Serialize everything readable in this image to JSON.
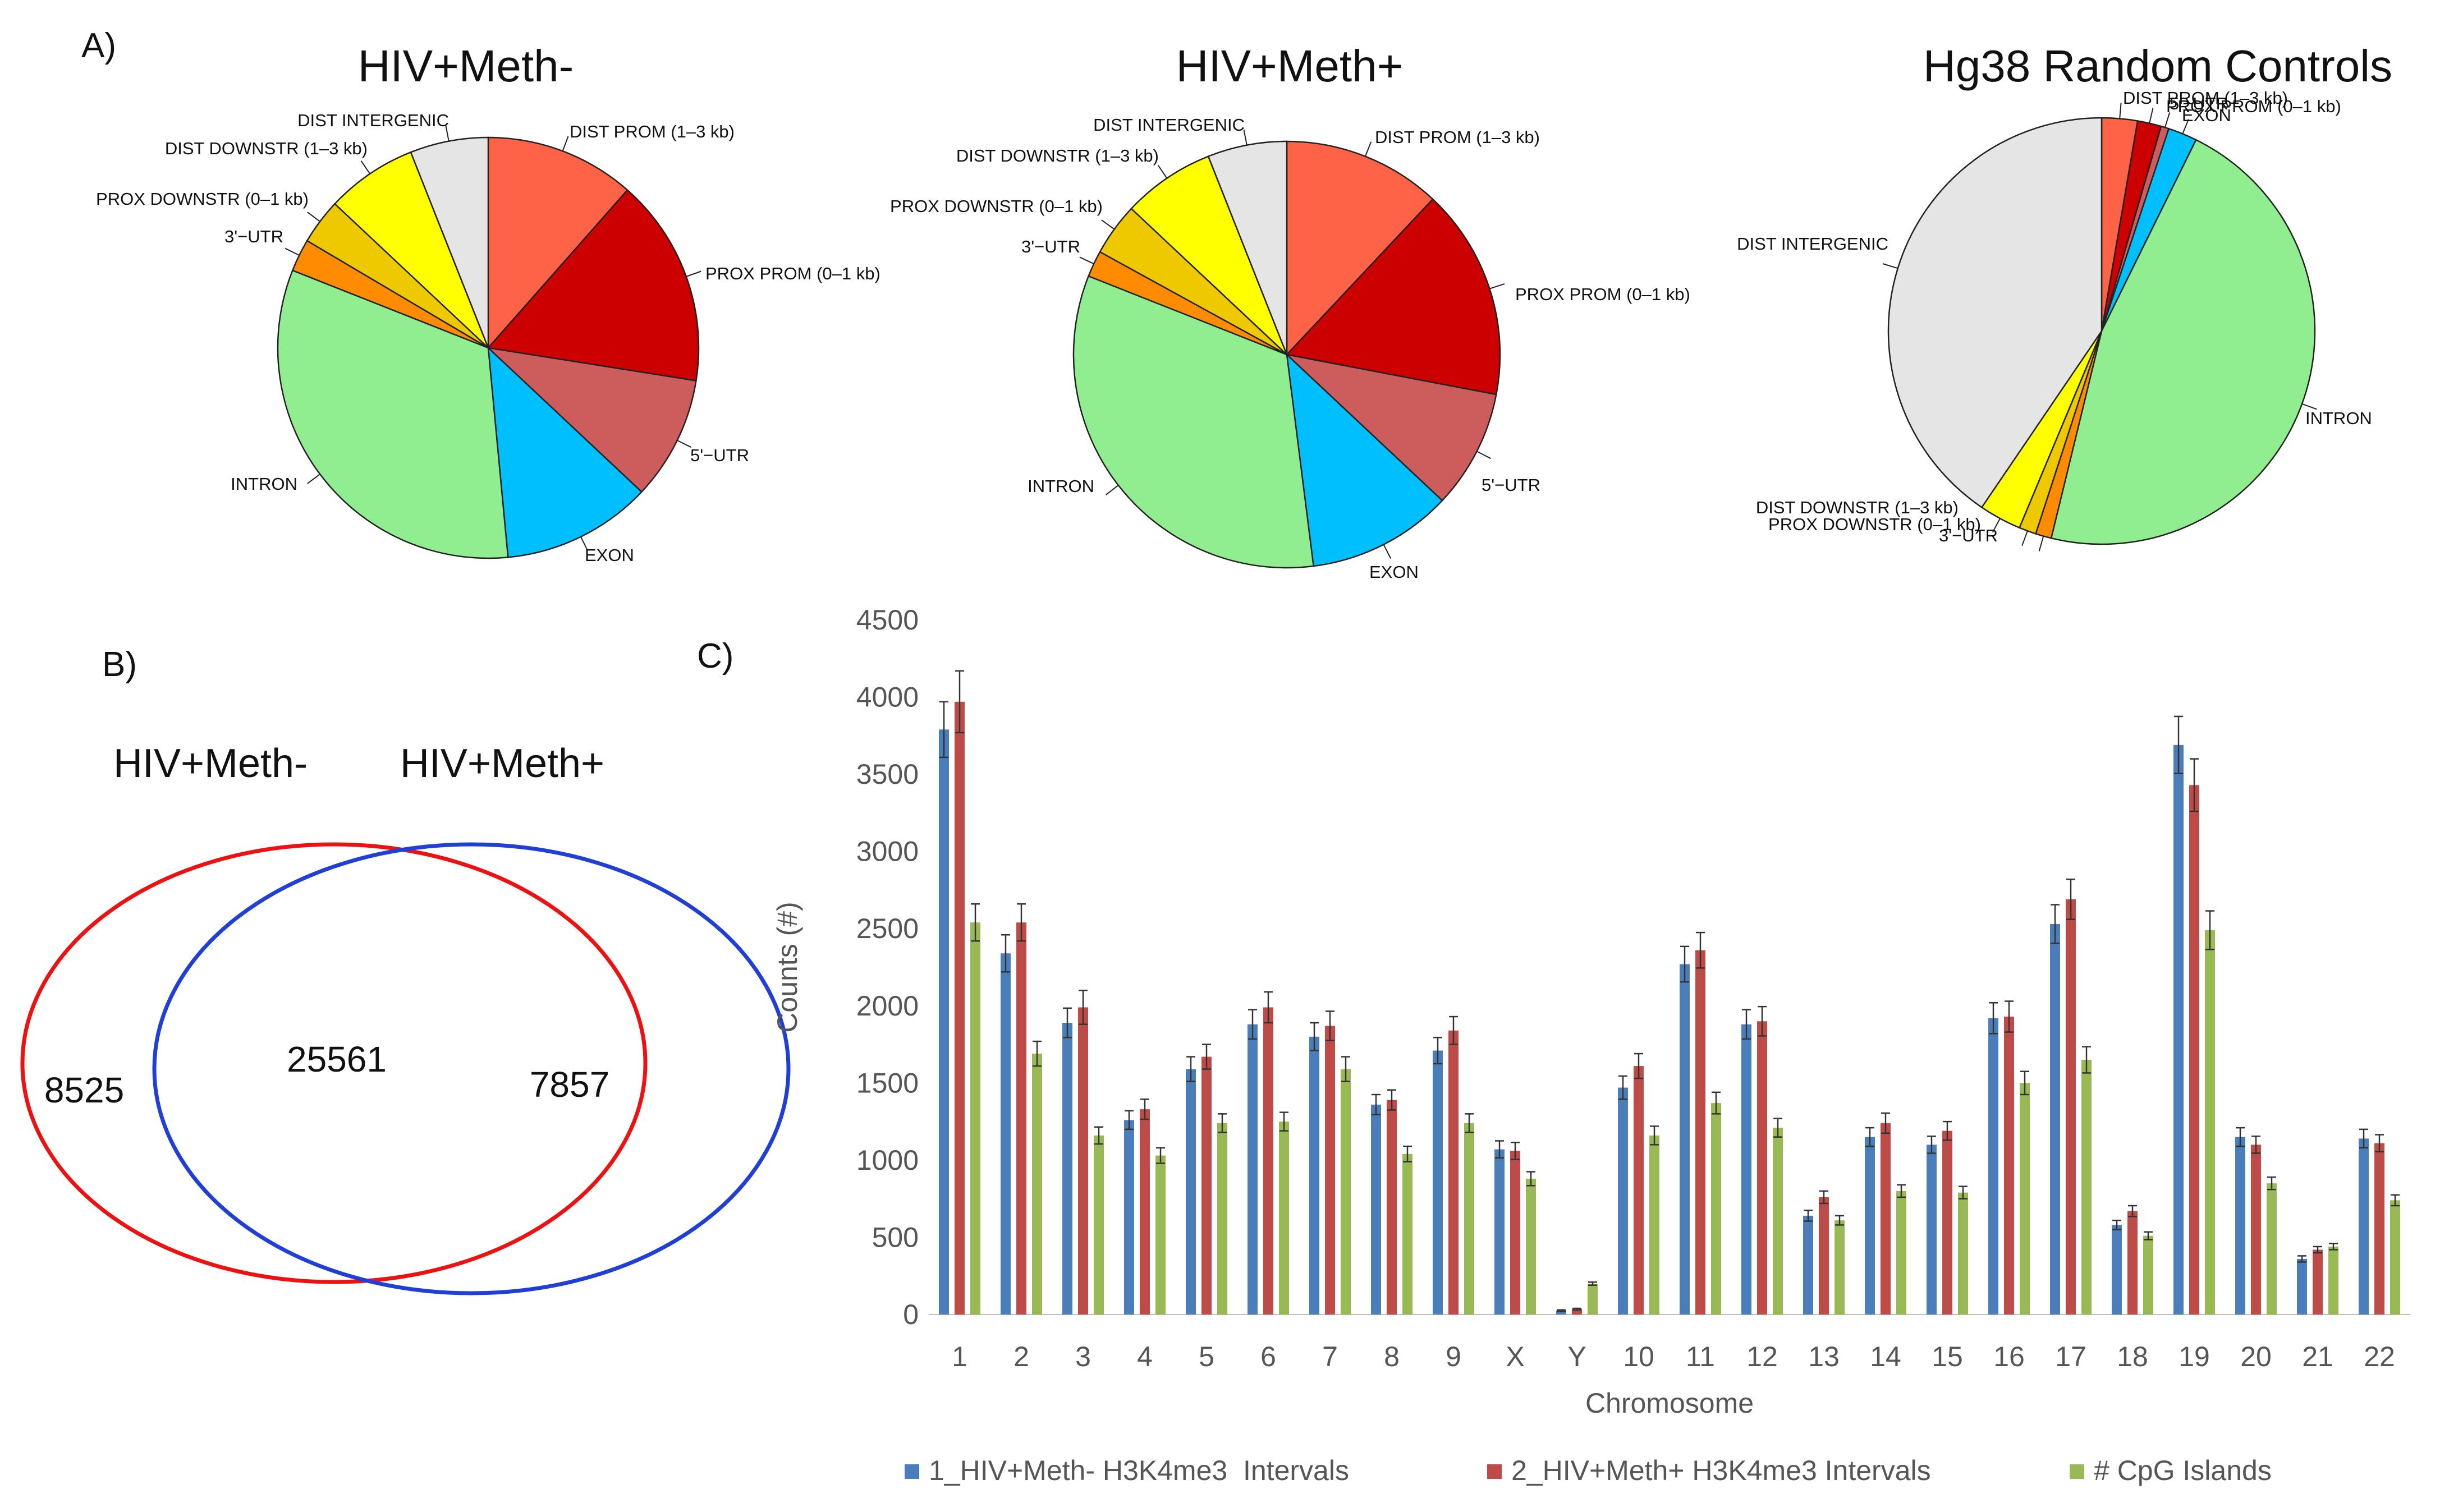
{
  "panels": {
    "a": "A)",
    "b": "B)",
    "c": "C)"
  },
  "chart_data": [
    {
      "type": "pie",
      "title": "HIV+Meth-",
      "slices": [
        {
          "label": "DIST PROM (1–3 kb)",
          "value": 11.5,
          "color": "#ff6347"
        },
        {
          "label": "PROX PROM (0–1 kb)",
          "value": 16.0,
          "color": "#cc0000"
        },
        {
          "label": "5'−UTR",
          "value": 9.5,
          "color": "#cd5c5c"
        },
        {
          "label": "EXON",
          "value": 11.5,
          "color": "#00bfff"
        },
        {
          "label": "INTRON",
          "value": 32.5,
          "color": "#90ee90"
        },
        {
          "label": "3'−UTR",
          "value": 2.5,
          "color": "#ff8c00"
        },
        {
          "label": "PROX DOWNSTR (0–1 kb)",
          "value": 3.5,
          "color": "#eec900"
        },
        {
          "label": "DIST DOWNSTR (1–3 kb)",
          "value": 7.0,
          "color": "#ffff00"
        },
        {
          "label": "DIST INTERGENIC",
          "value": 6.0,
          "color": "#e5e5e5"
        }
      ]
    },
    {
      "type": "pie",
      "title": "HIV+Meth+",
      "slices": [
        {
          "label": "DIST PROM (1–3 kb)",
          "value": 12.0,
          "color": "#ff6347"
        },
        {
          "label": "PROX PROM (0–1 kb)",
          "value": 16.0,
          "color": "#cc0000"
        },
        {
          "label": "5'−UTR",
          "value": 9.0,
          "color": "#cd5c5c"
        },
        {
          "label": "EXON",
          "value": 11.0,
          "color": "#00bfff"
        },
        {
          "label": "INTRON",
          "value": 33.0,
          "color": "#90ee90"
        },
        {
          "label": "3'−UTR",
          "value": 2.0,
          "color": "#ff8c00"
        },
        {
          "label": "PROX DOWNSTR (0–1 kb)",
          "value": 4.0,
          "color": "#eec900"
        },
        {
          "label": "DIST DOWNSTR (1–3 kb)",
          "value": 7.0,
          "color": "#ffff00"
        },
        {
          "label": "DIST INTERGENIC",
          "value": 6.0,
          "color": "#e5e5e5"
        }
      ]
    },
    {
      "type": "pie",
      "title": "Hg38 Random Controls",
      "slices": [
        {
          "label": "DIST PROM (1–3 kb)",
          "value": 2.7,
          "color": "#ff6347"
        },
        {
          "label": "PROX PROM (0–1 kb)",
          "value": 1.8,
          "color": "#cc0000"
        },
        {
          "label": "5'−UTR",
          "value": 0.6,
          "color": "#cd5c5c"
        },
        {
          "label": "EXON",
          "value": 2.2,
          "color": "#00bfff"
        },
        {
          "label": "INTRON",
          "value": 46.5,
          "color": "#90ee90"
        },
        {
          "label": "3'−UTR",
          "value": 1.2,
          "color": "#ff8c00"
        },
        {
          "label": "PROX DOWNSTR (0–1 kb)",
          "value": 1.3,
          "color": "#eec900"
        },
        {
          "label": "DIST DOWNSTR (1–3 kb)",
          "value": 3.2,
          "color": "#ffff00"
        },
        {
          "label": "DIST INTERGENIC",
          "value": 40.5,
          "color": "#e5e5e5"
        }
      ]
    },
    {
      "type": "venn",
      "sets": [
        {
          "name": "HIV+Meth-",
          "only": "8525",
          "color": "#ee1111"
        },
        {
          "name": "HIV+Meth+",
          "only": "7857",
          "color": "#1f3fd6"
        }
      ],
      "overlap": "25561"
    },
    {
      "type": "bar",
      "xlabel": "Chromosome",
      "ylabel": "Counts (#)",
      "ylim": [
        0,
        4500
      ],
      "yticks": [
        0,
        500,
        1000,
        1500,
        2000,
        2500,
        3000,
        3500,
        4000,
        4500
      ],
      "categories": [
        "1",
        "2",
        "3",
        "4",
        "5",
        "6",
        "7",
        "8",
        "9",
        "X",
        "Y",
        "10",
        "11",
        "12",
        "13",
        "14",
        "15",
        "16",
        "17",
        "18",
        "19",
        "20",
        "21",
        "22"
      ],
      "series": [
        {
          "name": "1_HIV+Meth- H3K4me3  Intervals",
          "color": "#4a7ebb",
          "values": [
            3790,
            2340,
            1890,
            1260,
            1590,
            1880,
            1800,
            1360,
            1710,
            1070,
            25,
            1470,
            2270,
            1880,
            640,
            1150,
            1100,
            1920,
            2530,
            580,
            3690,
            1150,
            360,
            1140
          ],
          "errors": [
            180,
            120,
            95,
            60,
            80,
            95,
            90,
            65,
            85,
            55,
            5,
            75,
            115,
            95,
            35,
            60,
            55,
            100,
            125,
            30,
            185,
            60,
            20,
            60
          ]
        },
        {
          "name": "2_HIV+Meth+ H3K4me3 Intervals",
          "color": "#be4b48",
          "values": [
            3970,
            2540,
            1990,
            1330,
            1670,
            1990,
            1870,
            1390,
            1840,
            1060,
            35,
            1610,
            2360,
            1900,
            760,
            1240,
            1190,
            1930,
            2690,
            670,
            3430,
            1100,
            420,
            1110
          ],
          "errors": [
            200,
            120,
            110,
            65,
            80,
            100,
            95,
            65,
            90,
            55,
            5,
            80,
            115,
            95,
            40,
            65,
            60,
            100,
            130,
            35,
            170,
            55,
            20,
            55
          ]
        },
        {
          "name": "# CpG Islands",
          "color": "#98b954",
          "values": [
            2540,
            1690,
            1160,
            1030,
            1240,
            1250,
            1590,
            1040,
            1240,
            880,
            200,
            1160,
            1370,
            1210,
            610,
            800,
            790,
            1500,
            1650,
            510,
            2490,
            850,
            440,
            740
          ],
          "errors": [
            120,
            80,
            55,
            50,
            60,
            60,
            80,
            50,
            60,
            45,
            10,
            60,
            70,
            60,
            30,
            40,
            40,
            75,
            85,
            25,
            125,
            40,
            20,
            35
          ]
        }
      ]
    }
  ]
}
